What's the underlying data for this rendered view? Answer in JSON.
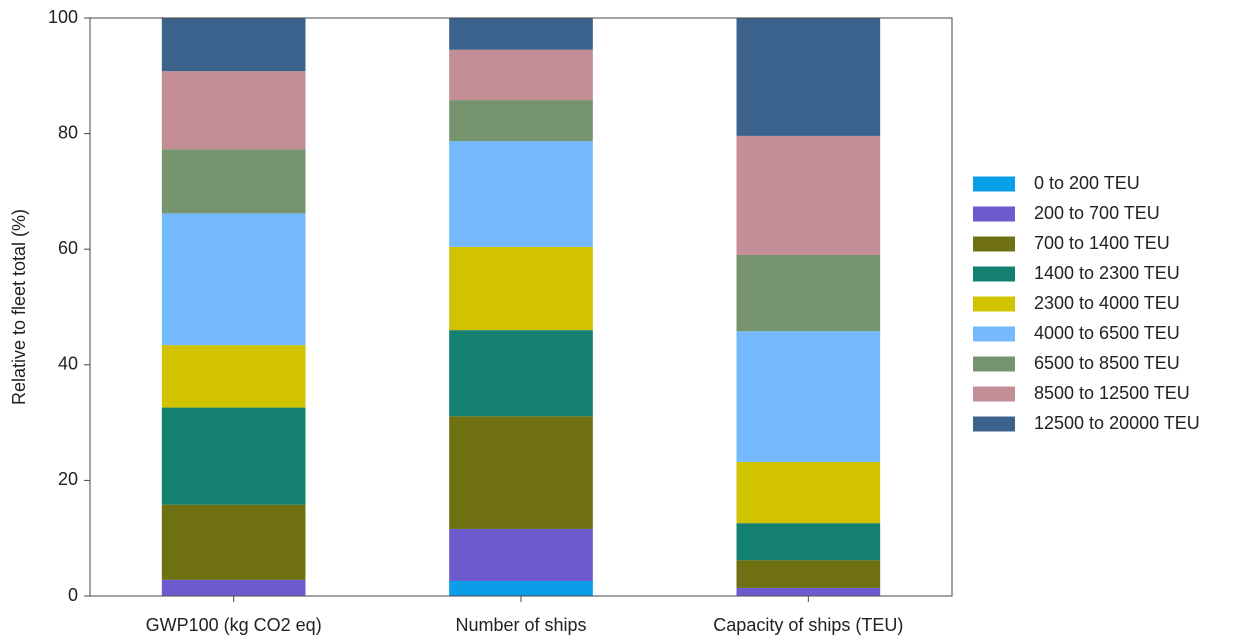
{
  "chart_data": {
    "type": "stacked_bar",
    "ylabel": "Relative to fleet total (%)",
    "categories": [
      "GWP100 (kg CO2 eq)",
      "Number of ships",
      "Capacity of ships (TEU)"
    ],
    "series": [
      {
        "name": "0 to 200 TEU",
        "color": "#0a9ee8",
        "values": [
          0.1,
          2.6,
          0.1
        ]
      },
      {
        "name": "200 to 700 TEU",
        "color": "#6e5acf",
        "values": [
          2.7,
          9.0,
          1.3
        ]
      },
      {
        "name": "700 to 1400 TEU",
        "color": "#6e7012",
        "values": [
          13.0,
          19.5,
          4.8
        ]
      },
      {
        "name": "1400 to 2300 TEU",
        "color": "#138070",
        "values": [
          16.8,
          14.9,
          6.4
        ]
      },
      {
        "name": "2300 to 4000 TEU",
        "color": "#d2c300",
        "values": [
          10.8,
          14.4,
          10.6
        ]
      },
      {
        "name": "4000 to 6500 TEU",
        "color": "#74b9fb",
        "values": [
          22.8,
          18.3,
          22.6
        ]
      },
      {
        "name": "6500 to 8500 TEU",
        "color": "#76946e",
        "values": [
          11.1,
          7.1,
          13.2
        ]
      },
      {
        "name": "8500 to 12500 TEU",
        "color": "#c48e97",
        "values": [
          13.5,
          8.7,
          20.6
        ]
      },
      {
        "name": "12500 to 20000 TEU",
        "color": "#3c638e",
        "values": [
          9.2,
          5.5,
          20.4
        ]
      }
    ],
    "ylim": [
      0,
      100
    ],
    "yticks": [
      0,
      20,
      40,
      60,
      80,
      100
    ],
    "legend": "right"
  }
}
